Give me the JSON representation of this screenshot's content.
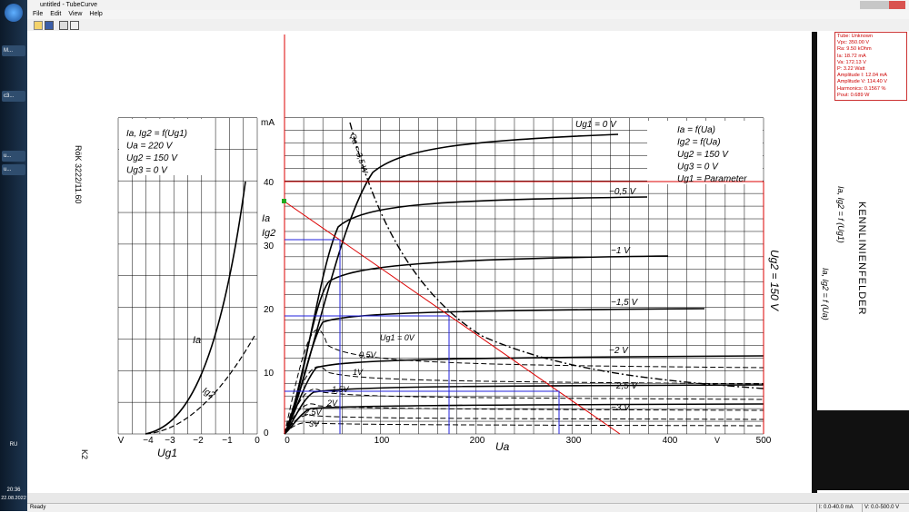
{
  "window": {
    "title": "untitled - TubeCurve",
    "menu": [
      "File",
      "Edit",
      "View",
      "Help"
    ]
  },
  "taskbar": {
    "items": [
      "M...",
      "c3...",
      "u...",
      "u..."
    ],
    "language": "RU",
    "time": "20:36",
    "date": "22.08.2022"
  },
  "info_box": [
    "Tube: Unknown",
    "Vpc: 350.00 V",
    "Ra: 9.50 kOhm",
    "Ia: 18.72 mA",
    "Va: 172.13 V",
    "P: 3.22 Watt",
    "Amplitude I: 12.04 mA",
    "Amplitude V: 114.40 V",
    "Harmonics: 0.1567 %",
    "Pout: 0.689 W"
  ],
  "scan": {
    "doc_code": "RöK 3222/11.60",
    "page_code": "K2",
    "heading": "KENNLINIENFELDER",
    "side_formulas": [
      "Ia, Ig2 = f (Ug1)",
      "Ia, Ig2 = f (Ua)"
    ],
    "y_unit": "mA",
    "y_ticks": [
      "40",
      "30",
      "20",
      "10",
      "0"
    ],
    "y_labels": [
      "Ia",
      "Ig2"
    ],
    "x_ticks": [
      "0",
      "100",
      "200",
      "300",
      "400",
      "500"
    ],
    "x_unit": "V",
    "x_label": "Ua",
    "left_x_ticks": [
      "V",
      "−4",
      "−3",
      "−2",
      "−1",
      "0"
    ],
    "left_x_label": "Ug1",
    "left_legend": [
      "Ia, Ig2 = f(Ug1)",
      "Ua    = 220 V",
      "Ug2   = 150 V",
      "Ug3   = 0 V"
    ],
    "left_curve_labels": [
      "Ia",
      "Ig2"
    ],
    "right_legend": [
      "Ia   = f(Ua)",
      "Ig2  = f(Ua)",
      "Ug2  = 150 V",
      "Ug3  = 0 V",
      "Ug1 = Parameter"
    ],
    "plate_curve_labels": [
      "Ug1 = 0 V",
      "−0,5 V",
      "−1 V",
      "−1,5 V",
      "−2 V",
      "−2,5 V",
      "−3 V"
    ],
    "screen_curve_labels": [
      "Ug1 = 0V",
      "0,5V",
      "1V",
      "1,5V",
      "2V",
      "2,5V",
      "3V"
    ],
    "power_label": "Qa = 3,5 W",
    "ug2_label": "Ug2 = 150 V"
  },
  "status_bar": [
    "Ready",
    "I: 0.0-40.0 mA",
    "V: 0.0-500.0 V"
  ]
}
